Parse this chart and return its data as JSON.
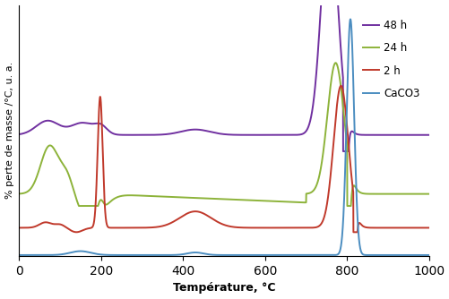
{
  "xlabel": "Température, °C",
  "ylabel": "% perte de masse /°C, u. a.",
  "xlim": [
    0,
    1000
  ],
  "ylim": [
    0,
    1.15
  ],
  "background_color": "#ffffff",
  "legend_entries": [
    "48 h",
    "24 h",
    "2 h",
    "CaCO3"
  ],
  "legend_colors": [
    "#7030a0",
    "#8db33a",
    "#c0392b",
    "#4b8dc0"
  ],
  "line_width": 1.4,
  "xticks": [
    0,
    200,
    400,
    600,
    800,
    1000
  ]
}
